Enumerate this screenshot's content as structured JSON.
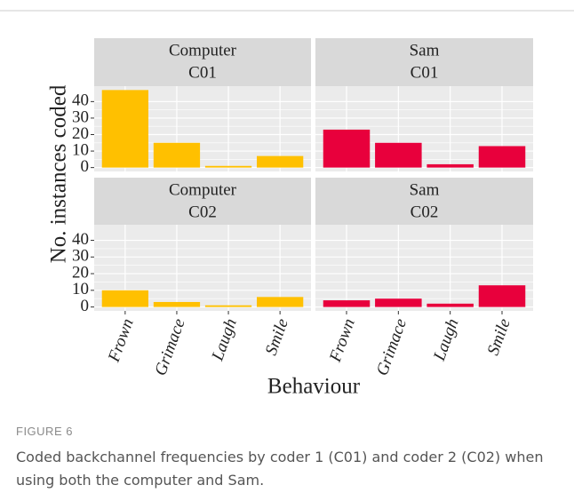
{
  "chart_data": [
    {
      "type": "bar",
      "title": "Computer",
      "subtitle": "C01",
      "color": "#ffc000",
      "values": [
        47,
        15,
        1,
        7
      ],
      "ylim": [
        -2.35,
        49.35
      ],
      "yticks": [
        0,
        10,
        20,
        30,
        40
      ],
      "grid": true
    },
    {
      "type": "bar",
      "title": "Sam",
      "subtitle": "C01",
      "color": "#e8003c",
      "values": [
        23,
        15,
        2,
        13
      ],
      "ylim": [
        -2.35,
        49.35
      ],
      "yticks": [
        0,
        10,
        20,
        30,
        40
      ],
      "grid": true
    },
    {
      "type": "bar",
      "title": "Computer",
      "subtitle": "C02",
      "color": "#ffc000",
      "categories": [
        "Frown",
        "Grimace",
        "Laugh",
        "Smile"
      ],
      "values": [
        10,
        3,
        1,
        6
      ],
      "ylim": [
        -2.35,
        49.35
      ],
      "yticks": [
        0,
        10,
        20,
        30,
        40
      ],
      "grid": true
    },
    {
      "type": "bar",
      "title": "Sam",
      "subtitle": "C02",
      "color": "#e8003c",
      "categories": [
        "Frown",
        "Grimace",
        "Laugh",
        "Smile"
      ],
      "values": [
        4,
        5,
        2,
        13
      ],
      "ylim": [
        -2.35,
        49.35
      ],
      "yticks": [
        0,
        10,
        20,
        30,
        40
      ],
      "grid": true
    }
  ],
  "figure": {
    "ylabel": "No. instances coded",
    "xlabel": "Behaviour",
    "label": "FIGURE 6",
    "caption": "Coded backchannel frequencies by coder 1 (C01) and coder 2 (C02) when using both the computer and Sam."
  }
}
